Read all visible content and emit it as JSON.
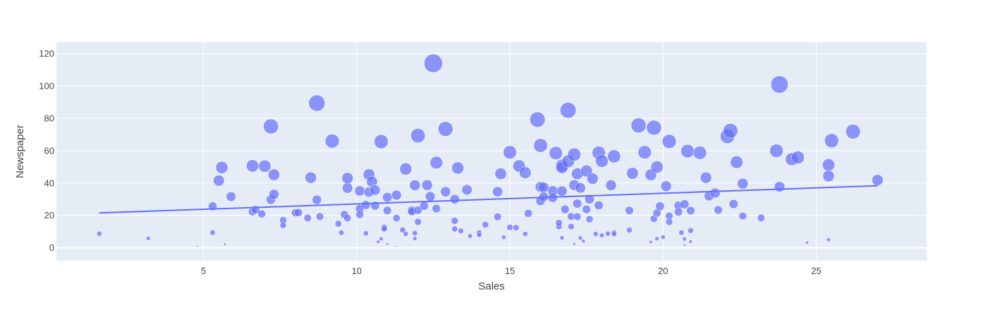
{
  "chart_data": {
    "type": "scatter",
    "xlabel": "Sales",
    "ylabel": "Newspaper",
    "xlim": [
      0.2,
      28.6
    ],
    "ylim": [
      -8,
      127
    ],
    "xticks": [
      5,
      10,
      15,
      20,
      25
    ],
    "yticks": [
      0,
      20,
      40,
      60,
      80,
      100,
      120
    ],
    "grid": true,
    "legend": "none",
    "colors": {
      "plot_bg": "#e5ecf6",
      "grid": "#ffffff",
      "marker": "#636efa",
      "marker_edge": "#ffffff",
      "trendline": "#636efa"
    },
    "marker_size_encoding": "Newspaper",
    "trendline": {
      "x": [
        1.6,
        27.0
      ],
      "y": [
        21.5,
        38.3
      ]
    },
    "points": [
      [
        1.6,
        8.7
      ],
      [
        3.2,
        5.8
      ],
      [
        4.8,
        1.0
      ],
      [
        5.3,
        25.6
      ],
      [
        5.3,
        9.3
      ],
      [
        5.5,
        41.5
      ],
      [
        5.6,
        49.6
      ],
      [
        5.7,
        2.1
      ],
      [
        5.9,
        31.6
      ],
      [
        6.6,
        50.6
      ],
      [
        6.6,
        22.3
      ],
      [
        6.7,
        23.5
      ],
      [
        6.9,
        20.9
      ],
      [
        7.0,
        50.4
      ],
      [
        7.2,
        75.0
      ],
      [
        7.2,
        29.7
      ],
      [
        7.3,
        45.1
      ],
      [
        7.3,
        33.0
      ],
      [
        7.6,
        17.0
      ],
      [
        7.6,
        13.9
      ],
      [
        8.0,
        21.6
      ],
      [
        8.1,
        21.7
      ],
      [
        8.4,
        18.4
      ],
      [
        8.5,
        43.3
      ],
      [
        8.7,
        89.4
      ],
      [
        8.7,
        29.6
      ],
      [
        8.8,
        19.3
      ],
      [
        9.2,
        65.9
      ],
      [
        9.4,
        14.8
      ],
      [
        9.5,
        9.3
      ],
      [
        9.6,
        20.5
      ],
      [
        9.7,
        18.3
      ],
      [
        9.7,
        36.9
      ],
      [
        9.7,
        43.0
      ],
      [
        10.1,
        35.1
      ],
      [
        10.1,
        24.1
      ],
      [
        10.1,
        20.5
      ],
      [
        10.3,
        26.4
      ],
      [
        10.3,
        8.9
      ],
      [
        10.4,
        34.4
      ],
      [
        10.4,
        45.2
      ],
      [
        10.5,
        40.8
      ],
      [
        10.6,
        35.6
      ],
      [
        10.6,
        26.0
      ],
      [
        10.7,
        3.7
      ],
      [
        10.8,
        65.6
      ],
      [
        10.8,
        5.5
      ],
      [
        10.9,
        12.6
      ],
      [
        10.9,
        11.6
      ],
      [
        11.0,
        31.2
      ],
      [
        11.0,
        23.0
      ],
      [
        11.0,
        2.2
      ],
      [
        11.3,
        32.5
      ],
      [
        11.3,
        18.3
      ],
      [
        11.3,
        0.9
      ],
      [
        11.5,
        11.0
      ],
      [
        11.6,
        8.5
      ],
      [
        11.6,
        48.7
      ],
      [
        11.8,
        23.2
      ],
      [
        11.8,
        22.3
      ],
      [
        11.9,
        38.6
      ],
      [
        11.9,
        9.0
      ],
      [
        11.9,
        5.7
      ],
      [
        12.0,
        69.3
      ],
      [
        12.0,
        16.0
      ],
      [
        12.0,
        23.2
      ],
      [
        12.2,
        25.9
      ],
      [
        12.3,
        38.7
      ],
      [
        12.4,
        31.7
      ],
      [
        12.5,
        114.0
      ],
      [
        12.6,
        52.6
      ],
      [
        12.6,
        24.2
      ],
      [
        12.9,
        73.4
      ],
      [
        12.9,
        34.6
      ],
      [
        13.2,
        30.0
      ],
      [
        13.2,
        16.6
      ],
      [
        13.2,
        11.6
      ],
      [
        13.3,
        49.3
      ],
      [
        13.4,
        10.4
      ],
      [
        13.6,
        35.8
      ],
      [
        13.7,
        7.2
      ],
      [
        14.0,
        9.3
      ],
      [
        14.0,
        7.8
      ],
      [
        14.2,
        14.2
      ],
      [
        14.6,
        34.6
      ],
      [
        14.6,
        19.1
      ],
      [
        14.7,
        45.7
      ],
      [
        14.8,
        6.4
      ],
      [
        15.0,
        59.0
      ],
      [
        15.0,
        12.6
      ],
      [
        15.2,
        12.4
      ],
      [
        15.3,
        50.5
      ],
      [
        15.5,
        46.4
      ],
      [
        15.5,
        8.5
      ],
      [
        15.6,
        21.2
      ],
      [
        15.9,
        79.2
      ],
      [
        16.0,
        63.2
      ],
      [
        16.0,
        37.6
      ],
      [
        16.0,
        29.0
      ],
      [
        16.1,
        37.3
      ],
      [
        16.1,
        31.5
      ],
      [
        16.4,
        35.2
      ],
      [
        16.4,
        31.0
      ],
      [
        16.5,
        58.5
      ],
      [
        16.6,
        13.1
      ],
      [
        16.6,
        15.4
      ],
      [
        16.7,
        50.9
      ],
      [
        16.7,
        49.6
      ],
      [
        16.7,
        35.0
      ],
      [
        16.7,
        6.1
      ],
      [
        16.8,
        23.7
      ],
      [
        16.9,
        85.0
      ],
      [
        16.9,
        53.4
      ],
      [
        17.0,
        19.3
      ],
      [
        17.0,
        13.1
      ],
      [
        17.1,
        57.6
      ],
      [
        17.1,
        38.7
      ],
      [
        17.1,
        2.3
      ],
      [
        17.2,
        45.7
      ],
      [
        17.2,
        27.3
      ],
      [
        17.2,
        19.2
      ],
      [
        17.3,
        37.0
      ],
      [
        17.3,
        6.0
      ],
      [
        17.4,
        4.1
      ],
      [
        17.5,
        47.4
      ],
      [
        17.5,
        23.7
      ],
      [
        17.6,
        30.0
      ],
      [
        17.6,
        17.6
      ],
      [
        17.7,
        42.7
      ],
      [
        17.8,
        8.5
      ],
      [
        17.9,
        58.7
      ],
      [
        17.9,
        26.2
      ],
      [
        18.0,
        53.6
      ],
      [
        18.0,
        7.6
      ],
      [
        18.2,
        8.7
      ],
      [
        18.3,
        38.6
      ],
      [
        18.4,
        56.5
      ],
      [
        18.4,
        9.3
      ],
      [
        18.4,
        8.4
      ],
      [
        18.9,
        23.0
      ],
      [
        18.9,
        10.9
      ],
      [
        19.0,
        46.0
      ],
      [
        19.2,
        75.6
      ],
      [
        19.4,
        59.0
      ],
      [
        19.6,
        3.6
      ],
      [
        19.6,
        45.1
      ],
      [
        19.7,
        74.2
      ],
      [
        19.7,
        17.9
      ],
      [
        19.8,
        49.9
      ],
      [
        19.8,
        21.4
      ],
      [
        19.8,
        5.6
      ],
      [
        19.9,
        25.6
      ],
      [
        20.0,
        6.5
      ],
      [
        20.1,
        38.0
      ],
      [
        20.2,
        65.7
      ],
      [
        20.2,
        19.6
      ],
      [
        20.2,
        16.0
      ],
      [
        20.5,
        26.0
      ],
      [
        20.5,
        22.1
      ],
      [
        20.6,
        9.3
      ],
      [
        20.7,
        26.9
      ],
      [
        20.7,
        5.4
      ],
      [
        20.7,
        1.7
      ],
      [
        20.8,
        59.7
      ],
      [
        20.9,
        22.9
      ],
      [
        20.9,
        10.6
      ],
      [
        20.9,
        3.8
      ],
      [
        21.2,
        58.7
      ],
      [
        21.4,
        43.3
      ],
      [
        21.5,
        32.0
      ],
      [
        21.7,
        33.8
      ],
      [
        21.8,
        23.3
      ],
      [
        22.1,
        68.8
      ],
      [
        22.2,
        72.3
      ],
      [
        22.3,
        27.0
      ],
      [
        22.4,
        52.9
      ],
      [
        22.6,
        39.6
      ],
      [
        22.6,
        19.6
      ],
      [
        23.2,
        18.4
      ],
      [
        23.7,
        59.9
      ],
      [
        23.8,
        100.9
      ],
      [
        23.8,
        37.7
      ],
      [
        24.2,
        54.7
      ],
      [
        24.4,
        55.8
      ],
      [
        24.7,
        3.2
      ],
      [
        25.4,
        51.2
      ],
      [
        25.4,
        44.3
      ],
      [
        25.4,
        5.0
      ],
      [
        25.5,
        66.2
      ],
      [
        26.2,
        71.8
      ],
      [
        27.0,
        41.8
      ]
    ]
  }
}
